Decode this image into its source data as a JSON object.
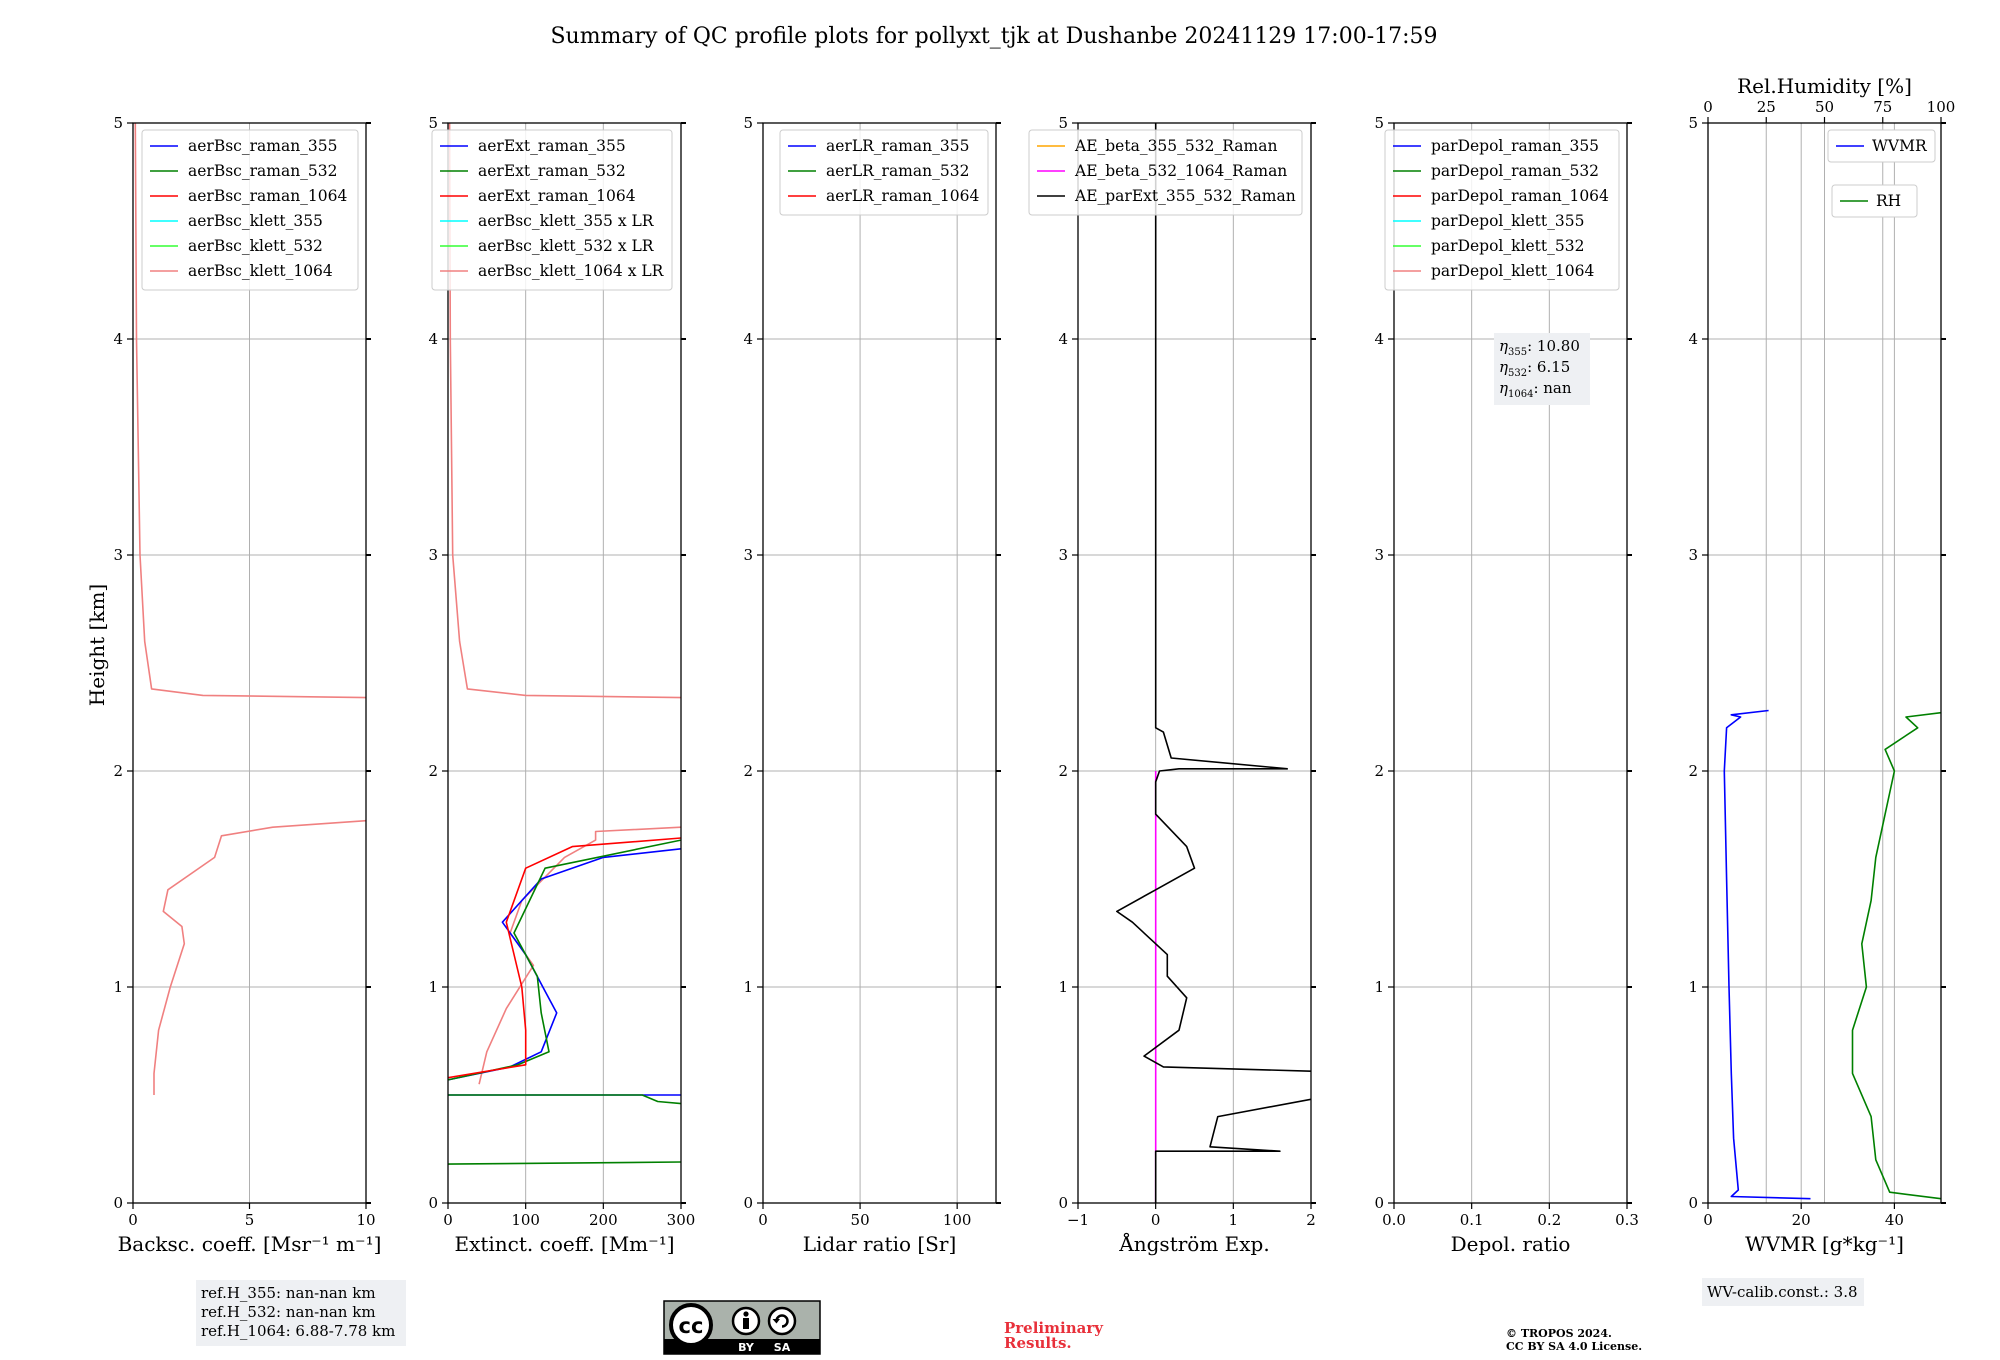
{
  "page": {
    "title": "Summary of QC profile plots for pollyxt_tjk at Dushanbe 20241129 17:00-17:59",
    "ylabel": "Height [km]"
  },
  "chart_data": [
    {
      "type": "line",
      "xlabel": "Backsc. coeff. [Msr⁻¹ m⁻¹]",
      "xlim": [
        0,
        10
      ],
      "ylim": [
        0,
        5
      ],
      "xticks": [
        0,
        5,
        10
      ],
      "yticks": [
        0,
        1,
        2,
        3,
        4,
        5
      ],
      "grid": true,
      "legend": "top-right",
      "legend_entries": [
        {
          "name": "aerBsc_raman_355",
          "color": "#0000ff"
        },
        {
          "name": "aerBsc_raman_532",
          "color": "#008000"
        },
        {
          "name": "aerBsc_raman_1064",
          "color": "#ff0000"
        },
        {
          "name": "aerBsc_klett_355",
          "color": "#00ffff"
        },
        {
          "name": "aerBsc_klett_532",
          "color": "#33ff33"
        },
        {
          "name": "aerBsc_klett_1064",
          "color": "#f08080"
        }
      ],
      "series": [
        {
          "name": "aerBsc_klett_1064",
          "color": "#f08080",
          "points": [
            [
              0.9,
              0.5
            ],
            [
              0.9,
              0.6
            ],
            [
              1.1,
              0.8
            ],
            [
              1.6,
              1.0
            ],
            [
              2.2,
              1.2
            ],
            [
              2.1,
              1.28
            ],
            [
              1.3,
              1.35
            ],
            [
              1.5,
              1.45
            ],
            [
              3.5,
              1.6
            ],
            [
              3.8,
              1.7
            ],
            [
              6,
              1.74
            ],
            [
              10,
              1.77
            ]
          ]
        },
        {
          "name": "aerBsc_klett_1064",
          "color": "#f08080",
          "points": [
            [
              10,
              2.34
            ],
            [
              3,
              2.35
            ],
            [
              0.8,
              2.38
            ],
            [
              0.5,
              2.6
            ],
            [
              0.3,
              3.0
            ],
            [
              0.15,
              4.0
            ],
            [
              0.1,
              5.0
            ]
          ]
        }
      ]
    },
    {
      "type": "line",
      "xlabel": "Extinct. coeff. [Mm⁻¹]",
      "xlim": [
        0,
        300
      ],
      "ylim": [
        0,
        5
      ],
      "xticks": [
        0,
        100,
        200,
        300
      ],
      "yticks": [
        0,
        1,
        2,
        3,
        4,
        5
      ],
      "grid": true,
      "legend": "top-right",
      "legend_entries": [
        {
          "name": "aerExt_raman_355",
          "color": "#0000ff"
        },
        {
          "name": "aerExt_raman_532",
          "color": "#008000"
        },
        {
          "name": "aerExt_raman_1064",
          "color": "#ff0000"
        },
        {
          "name": "aerBsc_klett_355 x LR",
          "color": "#00ffff"
        },
        {
          "name": "aerBsc_klett_532 x LR",
          "color": "#33ff33"
        },
        {
          "name": "aerBsc_klett_1064 x LR",
          "color": "#f08080"
        }
      ],
      "series": [
        {
          "name": "aerBsc_klett_1064 x LR",
          "color": "#f08080",
          "points": [
            [
              40,
              0.55
            ],
            [
              50,
              0.7
            ],
            [
              75,
              0.9
            ],
            [
              110,
              1.1
            ],
            [
              80,
              1.25
            ],
            [
              95,
              1.4
            ],
            [
              150,
              1.6
            ],
            [
              190,
              1.68
            ],
            [
              190,
              1.72
            ],
            [
              300,
              1.74
            ]
          ]
        },
        {
          "name": "aerBsc_klett_1064 x LR",
          "color": "#f08080",
          "points": [
            [
              300,
              2.34
            ],
            [
              100,
              2.35
            ],
            [
              25,
              2.38
            ],
            [
              15,
              2.6
            ],
            [
              6,
              3.0
            ],
            [
              3,
              4.0
            ],
            [
              2,
              5.0
            ]
          ]
        },
        {
          "name": "aerExt_raman_355",
          "color": "#0000ff",
          "points": [
            [
              0,
              0.57
            ],
            [
              80,
              0.63
            ],
            [
              120,
              0.7
            ],
            [
              140,
              0.88
            ],
            [
              125,
              0.98
            ],
            [
              100,
              1.15
            ],
            [
              70,
              1.3
            ],
            [
              120,
              1.5
            ],
            [
              200,
              1.6
            ],
            [
              300,
              1.64
            ]
          ]
        },
        {
          "name": "aerExt_raman_532",
          "color": "#008000",
          "points": [
            [
              0,
              0.57
            ],
            [
              90,
              0.64
            ],
            [
              130,
              0.7
            ],
            [
              120,
              0.88
            ],
            [
              115,
              1.05
            ],
            [
              85,
              1.25
            ],
            [
              125,
              1.55
            ],
            [
              300,
              1.68
            ]
          ]
        },
        {
          "name": "aerExt_raman_1064",
          "color": "#ff0000",
          "points": [
            [
              0,
              0.58
            ],
            [
              100,
              0.64
            ],
            [
              100,
              0.8
            ],
            [
              95,
              1.0
            ],
            [
              75,
              1.3
            ],
            [
              100,
              1.55
            ],
            [
              160,
              1.65
            ],
            [
              300,
              1.69
            ]
          ]
        },
        {
          "name": "aerExt_raman_355",
          "color": "#0000ff",
          "points": [
            [
              0,
              0.5
            ],
            [
              300,
              0.5
            ]
          ]
        },
        {
          "name": "aerExt_raman_532",
          "color": "#008000",
          "points": [
            [
              0,
              0.5
            ],
            [
              250,
              0.5
            ],
            [
              270,
              0.47
            ],
            [
              300,
              0.46
            ]
          ]
        },
        {
          "name": "aerExt_raman_532",
          "color": "#008000",
          "points": [
            [
              0,
              0.18
            ],
            [
              300,
              0.19
            ]
          ]
        }
      ]
    },
    {
      "type": "line",
      "xlabel": "Lidar ratio [Sr]",
      "xlim": [
        0,
        120
      ],
      "ylim": [
        0,
        5
      ],
      "xticks": [
        0,
        50,
        100
      ],
      "yticks": [
        0,
        1,
        2,
        3,
        4,
        5
      ],
      "grid": true,
      "legend": "top-right",
      "legend_entries": [
        {
          "name": "aerLR_raman_355",
          "color": "#0000ff"
        },
        {
          "name": "aerLR_raman_532",
          "color": "#008000"
        },
        {
          "name": "aerLR_raman_1064",
          "color": "#ff0000"
        }
      ],
      "series": []
    },
    {
      "type": "line",
      "xlabel": "Ångström Exp.",
      "xlim": [
        -1,
        2
      ],
      "ylim": [
        0,
        5
      ],
      "xticks": [
        -1,
        0,
        1,
        2
      ],
      "yticks": [
        0,
        1,
        2,
        3,
        4,
        5
      ],
      "grid": true,
      "legend": "top-right",
      "legend_entries": [
        {
          "name": "AE_beta_355_532_Raman",
          "color": "#ffa500"
        },
        {
          "name": "AE_beta_532_1064_Raman",
          "color": "#ff00ff"
        },
        {
          "name": "AE_parExt_355_532_Raman",
          "color": "#000000"
        }
      ],
      "series": [
        {
          "name": "AE_beta_532_1064_Raman",
          "color": "#ff00ff",
          "points": [
            [
              0,
              0
            ],
            [
              0,
              2.0
            ]
          ]
        },
        {
          "name": "AE_parExt_355_532_Raman",
          "color": "#000000",
          "points": [
            [
              0,
              0
            ],
            [
              0,
              0.24
            ],
            [
              1.6,
              0.24
            ],
            [
              0.7,
              0.26
            ],
            [
              0.8,
              0.4
            ],
            [
              2,
              0.48
            ]
          ]
        },
        {
          "name": "AE_parExt_355_532_Raman",
          "color": "#000000",
          "points": [
            [
              2,
              0.61
            ],
            [
              0.1,
              0.63
            ],
            [
              -0.15,
              0.68
            ],
            [
              0.3,
              0.8
            ],
            [
              0.4,
              0.95
            ],
            [
              0.15,
              1.05
            ],
            [
              0.15,
              1.15
            ],
            [
              -0.3,
              1.3
            ],
            [
              -0.5,
              1.35
            ],
            [
              0,
              1.45
            ],
            [
              0.5,
              1.55
            ],
            [
              0.4,
              1.65
            ],
            [
              0,
              1.8
            ],
            [
              0,
              1.95
            ],
            [
              0.05,
              2.0
            ],
            [
              0.3,
              2.01
            ],
            [
              1.7,
              2.01
            ]
          ]
        },
        {
          "name": "AE_parExt_355_532_Raman",
          "color": "#000000",
          "points": [
            [
              1.7,
              2.01
            ],
            [
              0.2,
              2.06
            ],
            [
              0.1,
              2.18
            ],
            [
              0,
              2.2
            ],
            [
              0,
              5.0
            ]
          ]
        }
      ]
    },
    {
      "type": "line",
      "xlabel": "Depol. ratio",
      "xlim": [
        0,
        0.3
      ],
      "ylim": [
        0,
        5
      ],
      "xticks": [
        "0.0",
        "0.1",
        "0.2",
        "0.3"
      ],
      "yticks": [
        0,
        1,
        2,
        3,
        4,
        5
      ],
      "grid": true,
      "legend": "top-right",
      "legend_entries": [
        {
          "name": "parDepol_raman_355",
          "color": "#0000ff"
        },
        {
          "name": "parDepol_raman_532",
          "color": "#008000"
        },
        {
          "name": "parDepol_raman_1064",
          "color": "#ff0000"
        },
        {
          "name": "parDepol_klett_355",
          "color": "#00ffff"
        },
        {
          "name": "parDepol_klett_532",
          "color": "#33ff33"
        },
        {
          "name": "parDepol_klett_1064",
          "color": "#f08080"
        }
      ],
      "annotation": {
        "lines": [
          [
            "η",
            "355",
            ": 10.80"
          ],
          [
            "η",
            "532",
            ": 6.15"
          ],
          [
            "η",
            "1064",
            ": nan"
          ]
        ]
      },
      "series": []
    },
    {
      "type": "line",
      "xlabel": "WVMR [g*kg⁻¹]",
      "x2label": "Rel.Humidity [%]",
      "xlim": [
        0,
        50
      ],
      "x2lim": [
        0,
        100
      ],
      "ylim": [
        0,
        5
      ],
      "xticks": [
        0,
        20,
        40
      ],
      "x2ticks": [
        0,
        25,
        50,
        75,
        100
      ],
      "yticks": [
        0,
        1,
        2,
        3,
        4,
        5
      ],
      "grid": true,
      "legend_entries": [
        {
          "name": "WVMR",
          "color": "#0000ff"
        },
        {
          "name": "RH",
          "color": "#008000"
        }
      ],
      "series": [
        {
          "name": "WVMR",
          "color": "#0000ff",
          "points": [
            [
              22,
              0.02
            ],
            [
              5,
              0.03
            ],
            [
              6.5,
              0.06
            ],
            [
              5.5,
              0.3
            ],
            [
              5,
              0.6
            ],
            [
              4.5,
              1.0
            ],
            [
              4,
              1.5
            ],
            [
              3.5,
              2.0
            ],
            [
              4,
              2.2
            ],
            [
              7,
              2.25
            ],
            [
              5,
              2.26
            ],
            [
              13,
              2.28
            ]
          ]
        },
        {
          "name": "RH",
          "color": "#008000",
          "axis": "x2",
          "points": [
            [
              100,
              0.02
            ],
            [
              78,
              0.05
            ],
            [
              72,
              0.2
            ],
            [
              70,
              0.4
            ],
            [
              62,
              0.6
            ],
            [
              62,
              0.8
            ],
            [
              68,
              1.0
            ],
            [
              66,
              1.2
            ],
            [
              70,
              1.4
            ],
            [
              72,
              1.6
            ],
            [
              76,
              1.8
            ],
            [
              80,
              2.0
            ],
            [
              76,
              2.1
            ],
            [
              90,
              2.2
            ],
            [
              85,
              2.25
            ],
            [
              100,
              2.27
            ]
          ]
        }
      ]
    }
  ],
  "footer": {
    "refH": [
      "ref.H_355: nan-nan km",
      "ref.H_532: nan-nan km",
      "ref.H_1064: 6.88-7.78 km"
    ],
    "license_badge": {
      "cc": "cc",
      "by": "BY",
      "sa": "SA"
    },
    "preliminary": [
      "Preliminary",
      "Results."
    ],
    "copyright": [
      "© TROPOS 2024.",
      "CC BY SA 4.0 License."
    ],
    "wv_calib": "WV-calib.const.: 3.8",
    "preliminary_color": "#e8303a"
  }
}
